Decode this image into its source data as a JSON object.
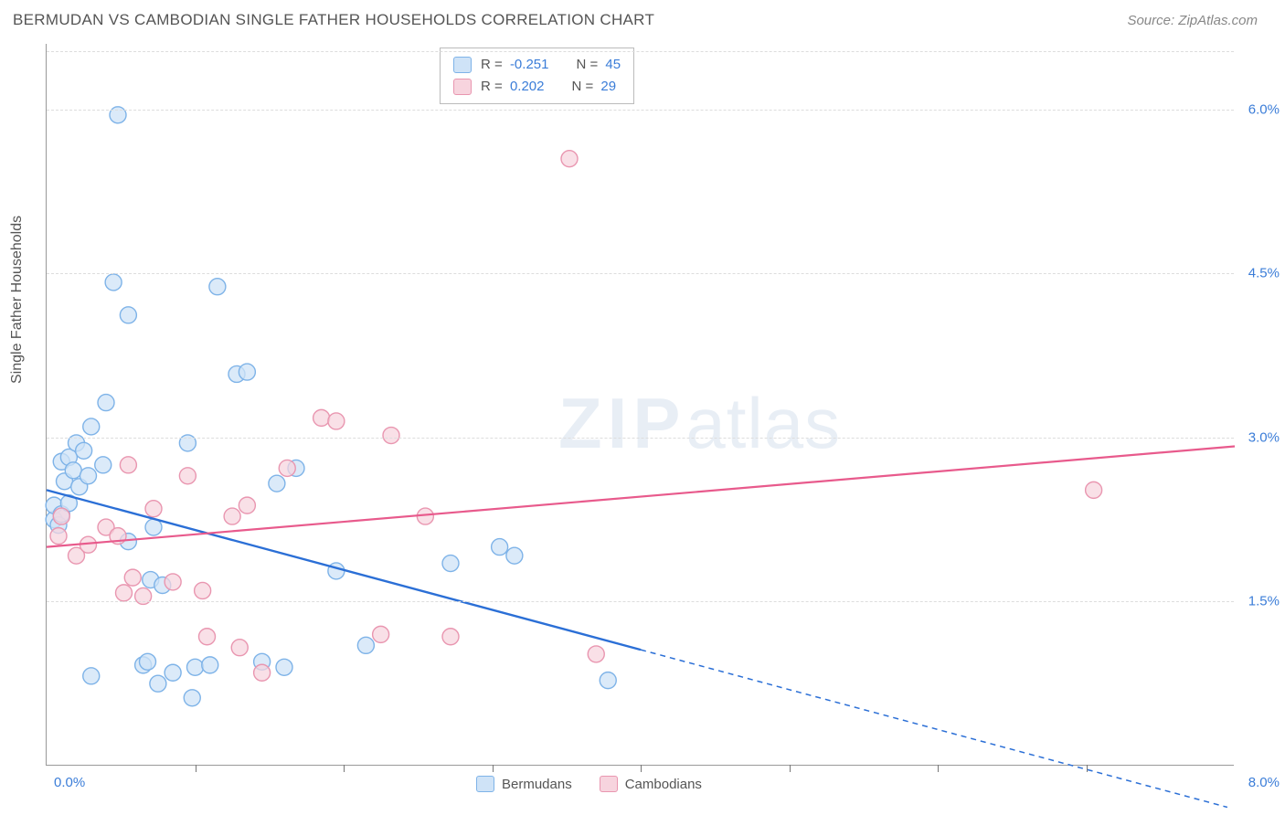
{
  "title": "BERMUDAN VS CAMBODIAN SINGLE FATHER HOUSEHOLDS CORRELATION CHART",
  "source": "Source: ZipAtlas.com",
  "ylabel": "Single Father Households",
  "watermark_zip": "ZIP",
  "watermark_atlas": "atlas",
  "chart": {
    "type": "scatter",
    "xlim": [
      0,
      8.0
    ],
    "ylim": [
      0,
      6.6
    ],
    "x_origin_label": "0.0%",
    "x_max_label": "8.0%",
    "y_ticks": [
      1.5,
      3.0,
      4.5,
      6.0
    ],
    "y_tick_labels": [
      "1.5%",
      "3.0%",
      "4.5%",
      "6.0%"
    ],
    "x_tick_marks": [
      1,
      2,
      3,
      4,
      5,
      6,
      7
    ],
    "grid_color": "#dddddd",
    "axis_color": "#999999",
    "label_color_blue": "#3b7dd8",
    "background_color": "#ffffff",
    "marker_radius": 9,
    "marker_stroke_width": 1.4,
    "series": [
      {
        "name": "Bermudans",
        "fill": "#cfe3f7",
        "stroke": "#7eb3e8",
        "fill_opacity": 0.75,
        "R": "-0.251",
        "N": "45",
        "trend": {
          "x1": 0.0,
          "y1": 2.52,
          "x2": 4.0,
          "y2": 1.06,
          "x_dash_end": 7.95,
          "y_dash_end": -0.38,
          "color": "#2b6fd6",
          "width": 2.4
        },
        "points": [
          [
            0.05,
            2.25
          ],
          [
            0.05,
            2.38
          ],
          [
            0.08,
            2.2
          ],
          [
            0.1,
            2.3
          ],
          [
            0.1,
            2.78
          ],
          [
            0.12,
            2.6
          ],
          [
            0.15,
            2.4
          ],
          [
            0.15,
            2.82
          ],
          [
            0.18,
            2.7
          ],
          [
            0.2,
            2.95
          ],
          [
            0.22,
            2.55
          ],
          [
            0.25,
            2.88
          ],
          [
            0.28,
            2.65
          ],
          [
            0.3,
            0.82
          ],
          [
            0.3,
            3.1
          ],
          [
            0.38,
            2.75
          ],
          [
            0.4,
            3.32
          ],
          [
            0.45,
            4.42
          ],
          [
            0.48,
            5.95
          ],
          [
            0.55,
            2.05
          ],
          [
            0.55,
            4.12
          ],
          [
            0.65,
            0.92
          ],
          [
            0.68,
            0.95
          ],
          [
            0.7,
            1.7
          ],
          [
            0.72,
            2.18
          ],
          [
            0.75,
            0.75
          ],
          [
            0.78,
            1.65
          ],
          [
            0.85,
            0.85
          ],
          [
            0.95,
            2.95
          ],
          [
            0.98,
            0.62
          ],
          [
            1.0,
            0.9
          ],
          [
            1.1,
            0.92
          ],
          [
            1.15,
            4.38
          ],
          [
            1.28,
            3.58
          ],
          [
            1.35,
            3.6
          ],
          [
            1.45,
            0.95
          ],
          [
            1.55,
            2.58
          ],
          [
            1.6,
            0.9
          ],
          [
            1.68,
            2.72
          ],
          [
            1.95,
            1.78
          ],
          [
            2.15,
            1.1
          ],
          [
            2.72,
            1.85
          ],
          [
            3.05,
            2.0
          ],
          [
            3.15,
            1.92
          ],
          [
            3.78,
            0.78
          ]
        ]
      },
      {
        "name": "Cambodians",
        "fill": "#f7d4de",
        "stroke": "#e996b0",
        "fill_opacity": 0.72,
        "R": "0.202",
        "N": "29",
        "trend": {
          "x1": 0.0,
          "y1": 2.0,
          "x2": 8.0,
          "y2": 2.92,
          "color": "#e85a8c",
          "width": 2.2
        },
        "points": [
          [
            0.08,
            2.1
          ],
          [
            0.1,
            2.28
          ],
          [
            0.2,
            1.92
          ],
          [
            0.28,
            2.02
          ],
          [
            0.4,
            2.18
          ],
          [
            0.48,
            2.1
          ],
          [
            0.52,
            1.58
          ],
          [
            0.55,
            2.75
          ],
          [
            0.58,
            1.72
          ],
          [
            0.65,
            1.55
          ],
          [
            0.72,
            2.35
          ],
          [
            0.85,
            1.68
          ],
          [
            0.95,
            2.65
          ],
          [
            1.05,
            1.6
          ],
          [
            1.08,
            1.18
          ],
          [
            1.25,
            2.28
          ],
          [
            1.3,
            1.08
          ],
          [
            1.35,
            2.38
          ],
          [
            1.45,
            0.85
          ],
          [
            1.62,
            2.72
          ],
          [
            1.85,
            3.18
          ],
          [
            1.95,
            3.15
          ],
          [
            2.25,
            1.2
          ],
          [
            2.32,
            3.02
          ],
          [
            2.55,
            2.28
          ],
          [
            2.72,
            1.18
          ],
          [
            3.52,
            5.55
          ],
          [
            3.7,
            1.02
          ],
          [
            7.05,
            2.52
          ]
        ]
      }
    ],
    "legend_bottom": [
      {
        "label": "Bermudans",
        "fill": "#cfe3f7",
        "stroke": "#7eb3e8"
      },
      {
        "label": "Cambodians",
        "fill": "#f7d4de",
        "stroke": "#e996b0"
      }
    ]
  }
}
